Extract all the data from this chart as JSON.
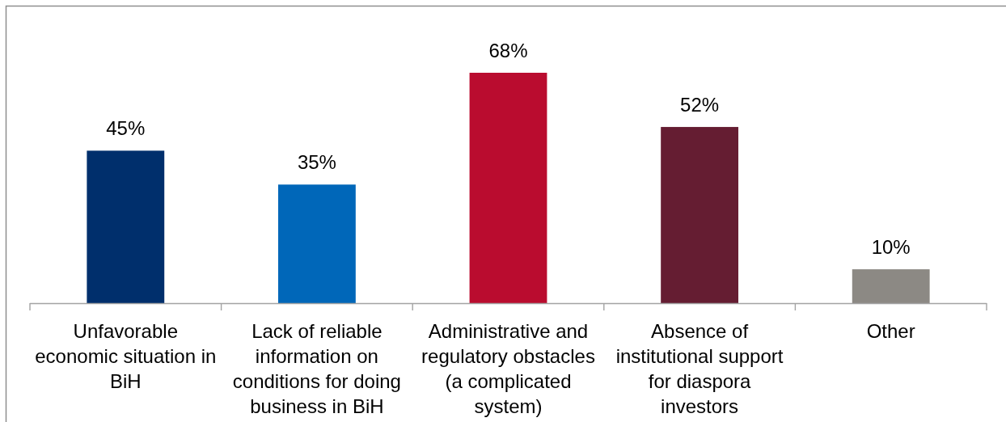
{
  "chart_data": {
    "type": "bar",
    "categories": [
      "Unfavorable economic situation in BiH",
      "Lack of reliable information on conditions for doing business in BiH",
      "Administrative and regulatory obstacles (a complicated system)",
      "Absence of institutional support for diaspora investors",
      "Other"
    ],
    "values": [
      45,
      35,
      68,
      52,
      10
    ],
    "colors": [
      "#002f6c",
      "#0067b9",
      "#ba0c2f",
      "#651d32",
      "#8c8984"
    ],
    "value_labels": [
      "45%",
      "35%",
      "68%",
      "52%",
      "10%"
    ]
  }
}
